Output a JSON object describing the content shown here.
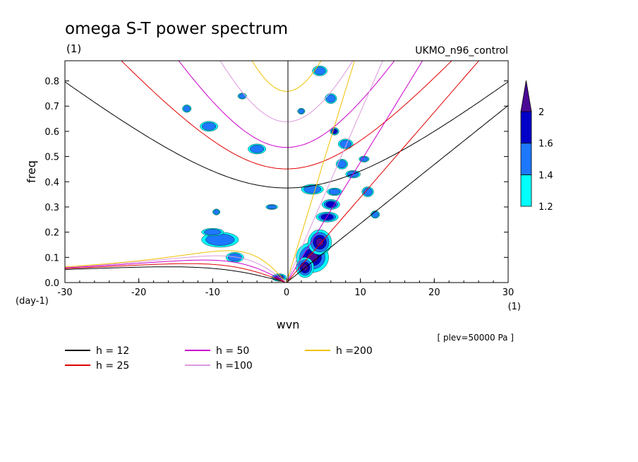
{
  "chart_data": {
    "type": "heatmap",
    "title": "omega S-T power spectrum",
    "subtitle_left": "(1)",
    "subtitle_right": "UKMO_n96_control",
    "xlabel": "wvn",
    "xunits": "(1)",
    "ylabel": "freq",
    "yunits": "(day-1)",
    "xlim": [
      -30,
      30
    ],
    "ylim": [
      0,
      0.88
    ],
    "xticks": [
      -30,
      -20,
      -10,
      0,
      10,
      20,
      30
    ],
    "yticks": [
      0.0,
      0.1,
      0.2,
      0.3,
      0.4,
      0.5,
      0.6,
      0.7,
      0.8
    ],
    "xtick_labels": [
      "-30",
      "-20",
      "-10",
      "0",
      "10",
      "20",
      "30"
    ],
    "ytick_labels": [
      "0.0",
      "0.1",
      "0.2",
      "0.3",
      "0.4",
      "0.5",
      "0.6",
      "0.7",
      "0.8"
    ],
    "annotation": "[ plev=50000 Pa ]",
    "colorbar": {
      "levels": [
        1.2,
        1.4,
        1.6,
        2
      ],
      "labels": [
        "1.2",
        "1.4",
        "1.6",
        "2"
      ],
      "colors": [
        "#00ffff",
        "#1e78ff",
        "#0000c8",
        "#4b0a96"
      ]
    },
    "dispersion_curves": [
      {
        "label": "h = 12",
        "h": 12,
        "color": "#000000"
      },
      {
        "label": "h = 25",
        "h": 25,
        "color": "#e00000"
      },
      {
        "label": "h = 50",
        "h": 50,
        "color": "#cc00cc"
      },
      {
        "label": "h =100",
        "h": 100,
        "color": "#dd99dd"
      },
      {
        "label": "h =200",
        "h": 200,
        "color": "#f0c000"
      }
    ],
    "power_patches": [
      {
        "k": 3.5,
        "f": 0.1,
        "rk": 2.2,
        "rf": 0.06,
        "level": 3
      },
      {
        "k": 2.5,
        "f": 0.06,
        "rk": 1.2,
        "rf": 0.04,
        "level": 3
      },
      {
        "k": 4.5,
        "f": 0.16,
        "rk": 1.6,
        "rf": 0.05,
        "level": 3
      },
      {
        "k": 5.5,
        "f": 0.26,
        "rk": 1.5,
        "rf": 0.02,
        "level": 2
      },
      {
        "k": 6.0,
        "f": 0.31,
        "rk": 1.2,
        "rf": 0.02,
        "level": 2
      },
      {
        "k": 6.5,
        "f": 0.36,
        "rk": 1.0,
        "rf": 0.015,
        "level": 1
      },
      {
        "k": 7.5,
        "f": 0.47,
        "rk": 0.8,
        "rf": 0.02,
        "level": 1
      },
      {
        "k": 6.5,
        "f": 0.6,
        "rk": 0.6,
        "rf": 0.015,
        "level": 2
      },
      {
        "k": -9.0,
        "f": 0.17,
        "rk": 2.5,
        "rf": 0.03,
        "level": 1
      },
      {
        "k": -10.0,
        "f": 0.2,
        "rk": 1.5,
        "rf": 0.015,
        "level": 1
      },
      {
        "k": -7.0,
        "f": 0.1,
        "rk": 1.2,
        "rf": 0.02,
        "level": 1
      },
      {
        "k": -1.0,
        "f": 0.02,
        "rk": 1.0,
        "rf": 0.015,
        "level": 3
      },
      {
        "k": -10.5,
        "f": 0.62,
        "rk": 1.2,
        "rf": 0.02,
        "level": 1
      },
      {
        "k": -13.5,
        "f": 0.69,
        "rk": 0.6,
        "rf": 0.015,
        "level": 1
      },
      {
        "k": -4.0,
        "f": 0.53,
        "rk": 1.2,
        "rf": 0.02,
        "level": 1
      },
      {
        "k": 3.5,
        "f": 0.37,
        "rk": 1.5,
        "rf": 0.02,
        "level": 1
      },
      {
        "k": 9.0,
        "f": 0.43,
        "rk": 1.0,
        "rf": 0.015,
        "level": 1
      },
      {
        "k": 11.0,
        "f": 0.36,
        "rk": 0.8,
        "rf": 0.02,
        "level": 1
      },
      {
        "k": 8.0,
        "f": 0.55,
        "rk": 1.0,
        "rf": 0.02,
        "level": 1
      },
      {
        "k": 6.0,
        "f": 0.73,
        "rk": 0.8,
        "rf": 0.02,
        "level": 1
      },
      {
        "k": 4.5,
        "f": 0.84,
        "rk": 1.0,
        "rf": 0.02,
        "level": 1
      },
      {
        "k": -2.0,
        "f": 0.3,
        "rk": 0.8,
        "rf": 0.01,
        "level": 1
      },
      {
        "k": 12.0,
        "f": 0.27,
        "rk": 0.6,
        "rf": 0.015,
        "level": 1
      },
      {
        "k": -9.5,
        "f": 0.28,
        "rk": 0.5,
        "rf": 0.012,
        "level": 1
      },
      {
        "k": -6.0,
        "f": 0.74,
        "rk": 0.6,
        "rf": 0.012,
        "level": 1
      },
      {
        "k": 2.0,
        "f": 0.68,
        "rk": 0.5,
        "rf": 0.012,
        "level": 1
      },
      {
        "k": 10.5,
        "f": 0.49,
        "rk": 0.7,
        "rf": 0.012,
        "level": 1
      }
    ]
  }
}
